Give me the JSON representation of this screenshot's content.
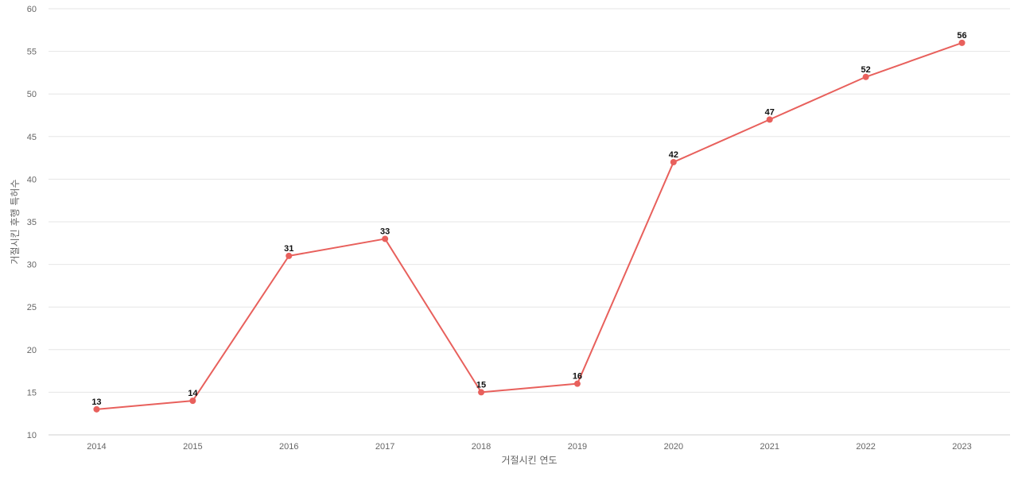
{
  "chart_data": {
    "type": "line",
    "categories": [
      "2014",
      "2015",
      "2016",
      "2017",
      "2018",
      "2019",
      "2020",
      "2021",
      "2022",
      "2023"
    ],
    "series": [
      {
        "values": [
          13,
          14,
          31,
          33,
          15,
          16,
          42,
          47,
          52,
          56
        ],
        "color": "#e8605c"
      }
    ],
    "xlabel": "거절시킨 연도",
    "ylabel": "거절시킨 후행 특허수",
    "ylim": [
      10,
      60
    ],
    "yticks": [
      10,
      15,
      20,
      25,
      30,
      35,
      40,
      45,
      50,
      55,
      60
    ],
    "grid": true,
    "data_labels": true
  }
}
